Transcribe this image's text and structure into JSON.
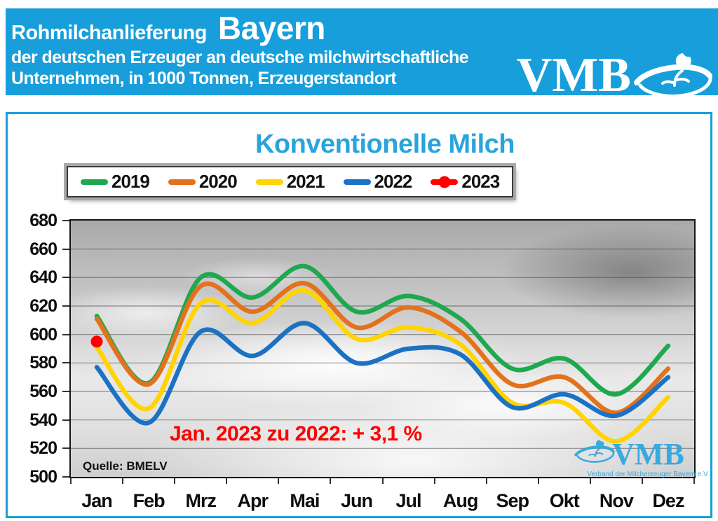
{
  "header": {
    "title_small": "Rohmilchanlieferung",
    "title_big": "Bayern",
    "subtitle1": "der deutschen Erzeuger an deutsche milchwirtschaftliche",
    "subtitle2": "Unternehmen, in 1000 Tonnen, Erzeugerstandort",
    "logo_text": "VMB",
    "band_color": "#18A0DC"
  },
  "chart": {
    "title": "Konventionelle Milch",
    "title_color": "#29A4DC",
    "annotation": "Jan. 2023 zu 2022: + 3,1 %",
    "annotation_color": "#FE0000",
    "source": "Quelle: BMELV",
    "watermark_text": "VMB",
    "watermark_subtext": "Verband der Milcherzeuger Bayern e.V."
  },
  "chart_data": {
    "type": "line",
    "title": "Konventionelle Milch",
    "categories": [
      "Jan",
      "Feb",
      "Mrz",
      "Apr",
      "Mai",
      "Jun",
      "Jul",
      "Aug",
      "Sep",
      "Okt",
      "Nov",
      "Dez"
    ],
    "series": [
      {
        "name": "2019",
        "color": "#1FA84F",
        "values": [
          613,
          566,
          640,
          626,
          648,
          616,
          627,
          611,
          576,
          583,
          558,
          592
        ]
      },
      {
        "name": "2020",
        "color": "#E2721C",
        "values": [
          611,
          565,
          634,
          616,
          636,
          605,
          619,
          602,
          565,
          570,
          545,
          576
        ]
      },
      {
        "name": "2021",
        "color": "#FFD400",
        "values": [
          591,
          548,
          622,
          608,
          631,
          597,
          605,
          593,
          552,
          552,
          525,
          556
        ]
      },
      {
        "name": "2022",
        "color": "#1B72C4",
        "values": [
          577,
          538,
          602,
          585,
          608,
          580,
          590,
          586,
          549,
          558,
          543,
          570
        ]
      },
      {
        "name": "2023",
        "color": "#FE0000",
        "marker": "circle",
        "values": [
          595
        ]
      }
    ],
    "ylim": [
      500,
      680
    ],
    "yticks": [
      680,
      660,
      640,
      620,
      600,
      580,
      560,
      540,
      520,
      500
    ],
    "grid": true,
    "legend_position": "top"
  }
}
